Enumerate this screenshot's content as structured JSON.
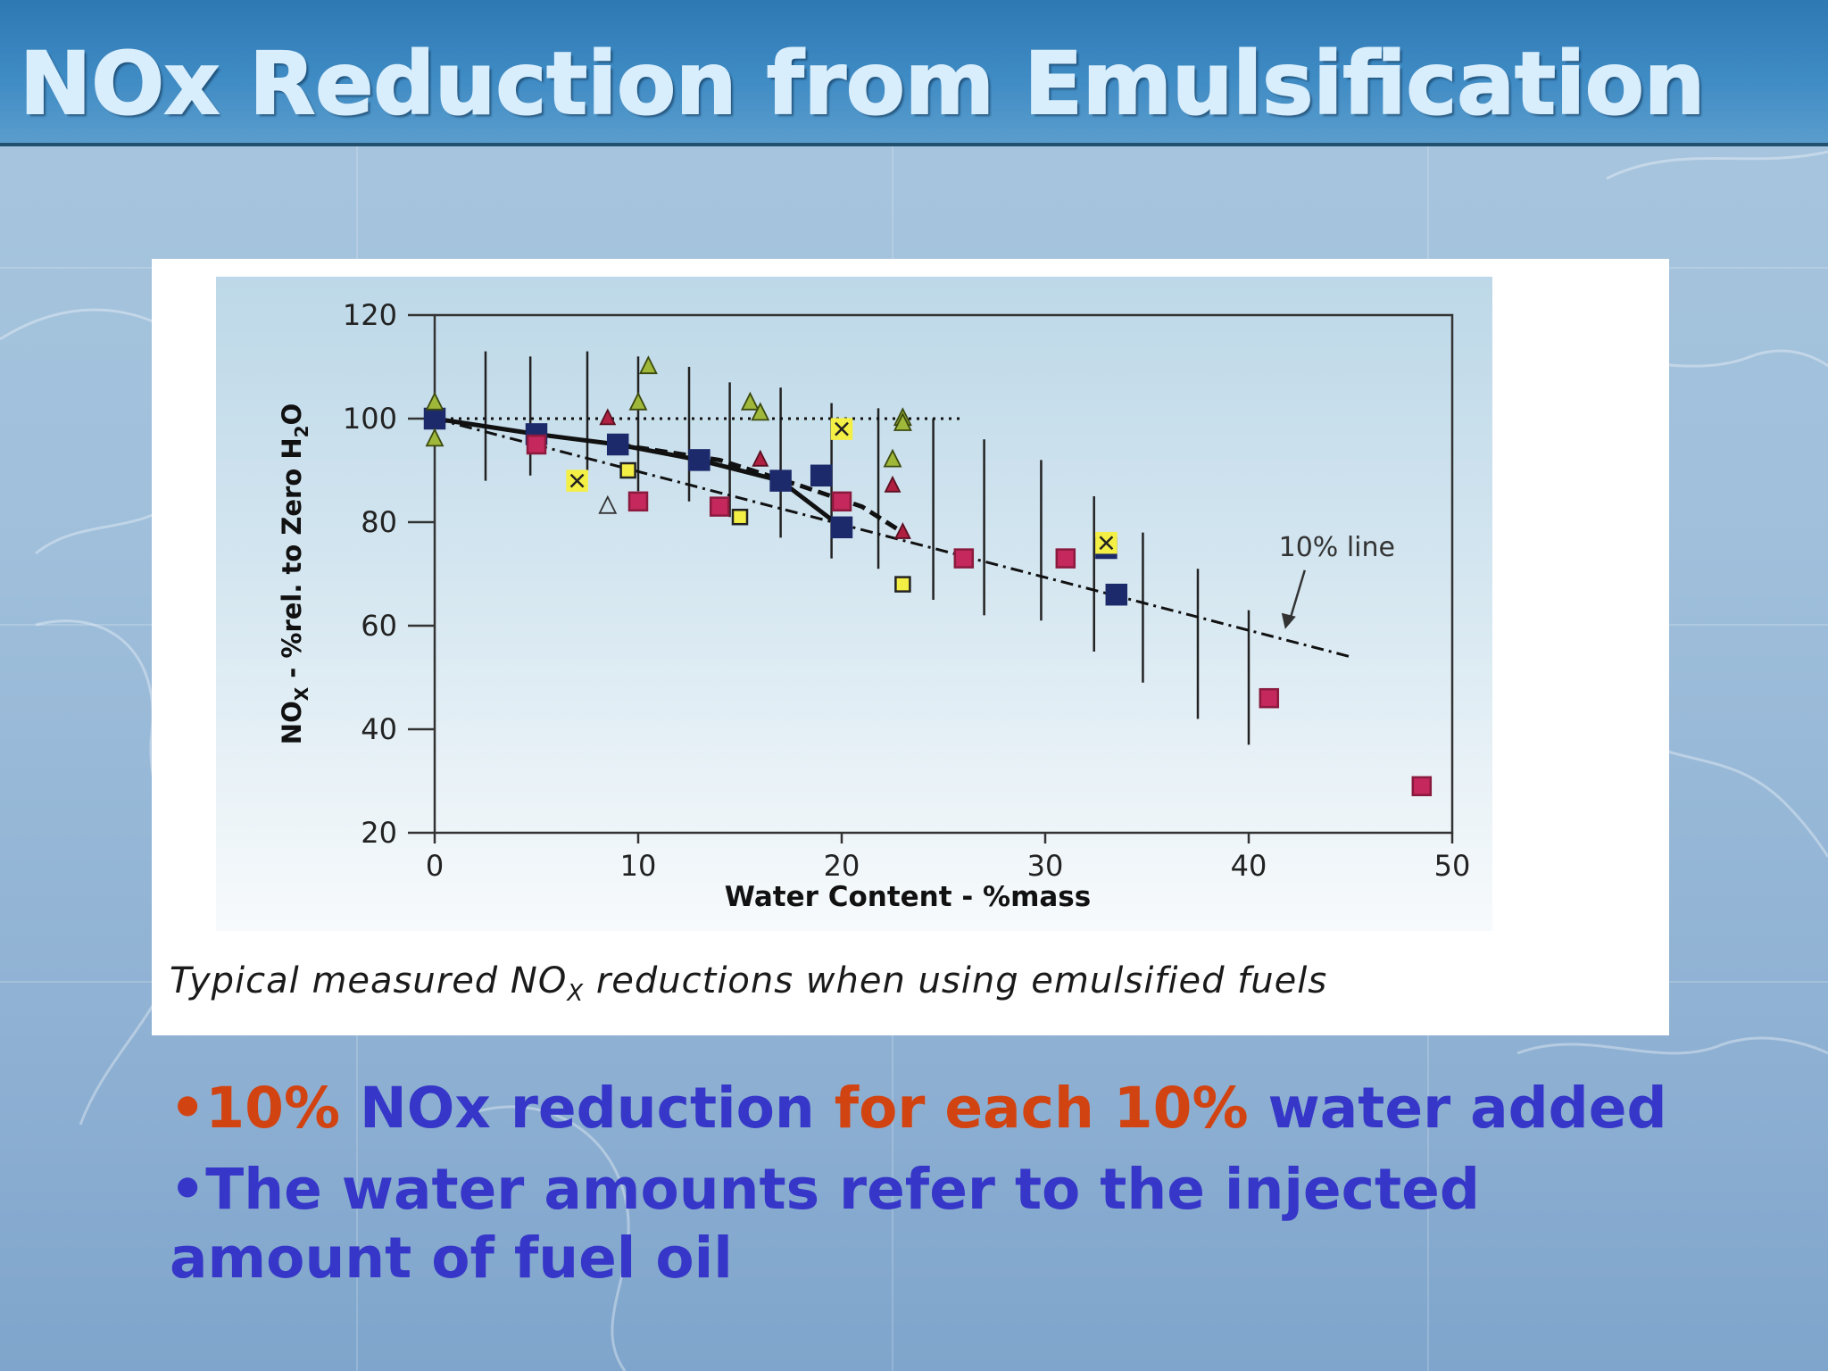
{
  "slide": {
    "title": "NOx Reduction from Emulsification",
    "bullets": [
      {
        "segments": [
          {
            "text": "•10% ",
            "color": "orange"
          },
          {
            "text": "NOx reduction ",
            "color": "blue"
          },
          {
            "text": "for each 10% ",
            "color": "orange"
          },
          {
            "text": "water added",
            "color": "blue"
          }
        ]
      },
      {
        "segments": [
          {
            "text": "•The water amounts refer to the injected amount of fuel oil",
            "color": "blue"
          }
        ]
      }
    ]
  },
  "figure": {
    "caption_main": "Typical measured NO",
    "caption_sub": "X",
    "caption_rest": " reductions when using emulsified fuels"
  },
  "colors": {
    "title": "#d9eefc",
    "header": "#3f8bc4",
    "bullet_blue": "#3636c8",
    "bullet_orange": "#d24312",
    "navy_marker": "#1c2a6b",
    "magenta_marker": "#c4285c",
    "yellow_marker": "#f4ef44",
    "olive_triangle": "#9fb83a",
    "red_triangle": "#b02040"
  },
  "chart_data": {
    "type": "scatter",
    "xlabel": "Water Content - %mass",
    "ylabel_main": "NO",
    "ylabel_sub": "X",
    "ylabel_rest": " - %rel. to Zero H",
    "ylabel_sub2": "2",
    "ylabel_end": "O",
    "xlim": [
      0,
      50
    ],
    "ylim": [
      20,
      120
    ],
    "xticks": [
      0,
      10,
      20,
      30,
      40,
      50
    ],
    "yticks": [
      20,
      40,
      60,
      80,
      100,
      120
    ],
    "grid": false,
    "annotation": {
      "text": "10% line",
      "x": 41,
      "y": 59
    },
    "reference_lines": [
      {
        "style": "dotted",
        "points": [
          [
            0,
            100
          ],
          [
            26,
            100
          ]
        ]
      },
      {
        "style": "dash-dot",
        "points": [
          [
            0,
            100
          ],
          [
            45,
            54
          ]
        ]
      }
    ],
    "trend_lines": [
      {
        "style": "solid",
        "points": [
          [
            0,
            100
          ],
          [
            5,
            97
          ],
          [
            9,
            95
          ],
          [
            13,
            92
          ],
          [
            17,
            88
          ],
          [
            20,
            79
          ]
        ]
      },
      {
        "style": "dashed",
        "points": [
          [
            9,
            95
          ],
          [
            14,
            92
          ],
          [
            18,
            87
          ],
          [
            21,
            83
          ],
          [
            23,
            78
          ]
        ]
      }
    ],
    "error_bars": [
      {
        "x": 2.5,
        "low": 88,
        "high": 113
      },
      {
        "x": 4.7,
        "low": 89,
        "high": 112
      },
      {
        "x": 7.5,
        "low": 90,
        "high": 113
      },
      {
        "x": 10.0,
        "low": 86,
        "high": 112
      },
      {
        "x": 12.5,
        "low": 84,
        "high": 110
      },
      {
        "x": 14.5,
        "low": 81,
        "high": 107
      },
      {
        "x": 17.0,
        "low": 77,
        "high": 106
      },
      {
        "x": 19.5,
        "low": 73,
        "high": 103
      },
      {
        "x": 21.8,
        "low": 71,
        "high": 102
      },
      {
        "x": 24.5,
        "low": 65,
        "high": 100
      },
      {
        "x": 27.0,
        "low": 62,
        "high": 96
      },
      {
        "x": 29.8,
        "low": 61,
        "high": 92
      },
      {
        "x": 32.4,
        "low": 55,
        "high": 85
      },
      {
        "x": 34.8,
        "low": 49,
        "high": 78
      },
      {
        "x": 37.5,
        "low": 42,
        "high": 71
      },
      {
        "x": 40.0,
        "low": 37,
        "high": 63
      }
    ],
    "series": [
      {
        "marker": "navy-square",
        "points": [
          [
            0,
            100
          ],
          [
            5,
            97
          ],
          [
            9,
            95
          ],
          [
            13,
            92
          ],
          [
            17,
            88
          ],
          [
            19,
            89
          ],
          [
            20,
            79
          ],
          [
            33,
            75
          ],
          [
            33.5,
            66
          ]
        ]
      },
      {
        "marker": "magenta-square",
        "points": [
          [
            5,
            95
          ],
          [
            10,
            84
          ],
          [
            14,
            83
          ],
          [
            20,
            84
          ],
          [
            26,
            73
          ],
          [
            31,
            73
          ],
          [
            41,
            46
          ],
          [
            48.5,
            29
          ]
        ]
      },
      {
        "marker": "yellow-square",
        "points": [
          [
            9.5,
            90
          ],
          [
            15,
            81
          ],
          [
            23,
            68
          ]
        ]
      },
      {
        "marker": "yellow-cross",
        "points": [
          [
            7,
            88
          ],
          [
            20,
            98
          ],
          [
            33,
            76
          ]
        ]
      },
      {
        "marker": "olive-triangle",
        "points": [
          [
            0,
            103
          ],
          [
            0,
            96
          ],
          [
            10.5,
            110
          ],
          [
            10,
            103
          ],
          [
            15.5,
            103
          ],
          [
            16,
            101
          ],
          [
            22.5,
            92
          ],
          [
            23,
            100
          ],
          [
            23,
            99
          ]
        ]
      },
      {
        "marker": "red-triangle",
        "points": [
          [
            8.5,
            100
          ],
          [
            16,
            92
          ],
          [
            22.5,
            87
          ],
          [
            23,
            78
          ]
        ]
      },
      {
        "marker": "open-triangle",
        "points": [
          [
            8.5,
            83
          ]
        ]
      }
    ]
  }
}
